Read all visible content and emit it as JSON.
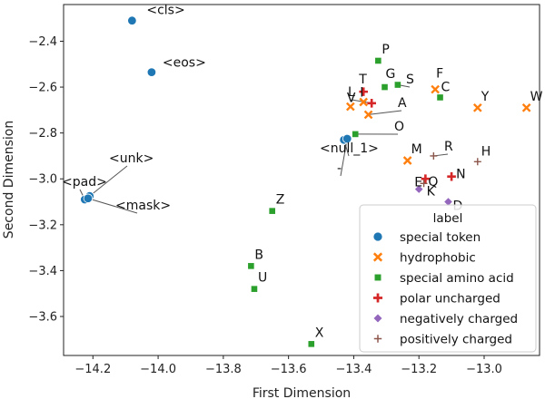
{
  "chart_data": {
    "type": "scatter",
    "title": "",
    "xlabel": "First Dimension",
    "ylabel": "Second Dimension",
    "xlim": [
      -14.29,
      -12.83
    ],
    "ylim": [
      -3.77,
      -2.24
    ],
    "xticks": [
      -14.2,
      -14.0,
      -13.8,
      -13.6,
      -13.4,
      -13.2,
      -13.0
    ],
    "xtick_labels": [
      "−14.2",
      "−14.0",
      "−13.8",
      "−13.6",
      "−13.4",
      "−13.2",
      "−13.0"
    ],
    "yticks": [
      -2.4,
      -2.6,
      -2.8,
      -3.0,
      -3.2,
      -3.4,
      -3.6
    ],
    "ytick_labels": [
      "−2.4",
      "−2.6",
      "−2.8",
      "−3.0",
      "−3.2",
      "−3.4",
      "−3.6"
    ],
    "grid": false,
    "legend": {
      "title": "label",
      "position": "lower-right",
      "entries": [
        {
          "name": "special token",
          "marker": "circle",
          "color": "#1f77b4"
        },
        {
          "name": "hydrophobic",
          "marker": "x",
          "color": "#ff7f0e"
        },
        {
          "name": "special amino acid",
          "marker": "square",
          "color": "#2ca02c"
        },
        {
          "name": "polar uncharged",
          "marker": "plus",
          "color": "#d62728"
        },
        {
          "name": "negatively charged",
          "marker": "diamond",
          "color": "#9467bd"
        },
        {
          "name": "positively charged",
          "marker": "thin-plus",
          "color": "#8c564b"
        }
      ]
    },
    "series": [
      {
        "name": "special token",
        "points": [
          {
            "label": "<cls>",
            "x": -14.08,
            "y": -2.31
          },
          {
            "label": "<eos>",
            "x": -14.02,
            "y": -2.535
          },
          {
            "label": "<unk>",
            "x": -14.21,
            "y": -3.075
          },
          {
            "label": "<pad>",
            "x": -14.225,
            "y": -3.09
          },
          {
            "label": "<mask>",
            "x": -14.215,
            "y": -3.085
          },
          {
            "label": "<null_1>",
            "x": -13.43,
            "y": -2.83
          },
          {
            "label": "-",
            "x": -13.42,
            "y": -2.825
          }
        ]
      },
      {
        "name": "hydrophobic",
        "points": [
          {
            "label": "F",
            "x": -13.15,
            "y": -2.61
          },
          {
            "label": "Y",
            "x": -13.02,
            "y": -2.69
          },
          {
            "label": "W",
            "x": -12.87,
            "y": -2.69
          },
          {
            "label": "V",
            "x": -13.41,
            "y": -2.685
          },
          {
            "label": "I",
            "x": -13.37,
            "y": -2.665
          },
          {
            "label": "A",
            "x": -13.355,
            "y": -2.72
          },
          {
            "label": "M",
            "x": -13.235,
            "y": -2.92
          }
        ]
      },
      {
        "name": "special amino acid",
        "points": [
          {
            "label": "P",
            "x": -13.325,
            "y": -2.485
          },
          {
            "label": "G",
            "x": -13.305,
            "y": -2.6
          },
          {
            "label": "S",
            "x": -13.265,
            "y": -2.59
          },
          {
            "label": "C",
            "x": -13.135,
            "y": -2.645
          },
          {
            "label": "O",
            "x": -13.395,
            "y": -2.805
          },
          {
            "label": "Z",
            "x": -13.65,
            "y": -3.14
          },
          {
            "label": "B",
            "x": -13.715,
            "y": -3.38
          },
          {
            "label": "U",
            "x": -13.705,
            "y": -3.48
          },
          {
            "label": "X",
            "x": -13.53,
            "y": -3.72
          }
        ]
      },
      {
        "name": "polar uncharged",
        "points": [
          {
            "label": "T",
            "x": -13.37,
            "y": -2.62
          },
          {
            "label": "L",
            "x": -13.345,
            "y": -2.67
          },
          {
            "label": "Q",
            "x": -13.18,
            "y": -3.0
          },
          {
            "label": "N",
            "x": -13.1,
            "y": -2.99
          }
        ]
      },
      {
        "name": "negatively charged",
        "points": [
          {
            "label": "E",
            "x": -13.2,
            "y": -3.045
          },
          {
            "label": "D",
            "x": -13.11,
            "y": -3.1
          }
        ]
      },
      {
        "name": "positively charged",
        "points": [
          {
            "label": "R",
            "x": -13.155,
            "y": -2.9
          },
          {
            "label": "H",
            "x": -13.02,
            "y": -2.925
          },
          {
            "label": "K",
            "x": -13.185,
            "y": -3.02
          }
        ]
      }
    ]
  }
}
